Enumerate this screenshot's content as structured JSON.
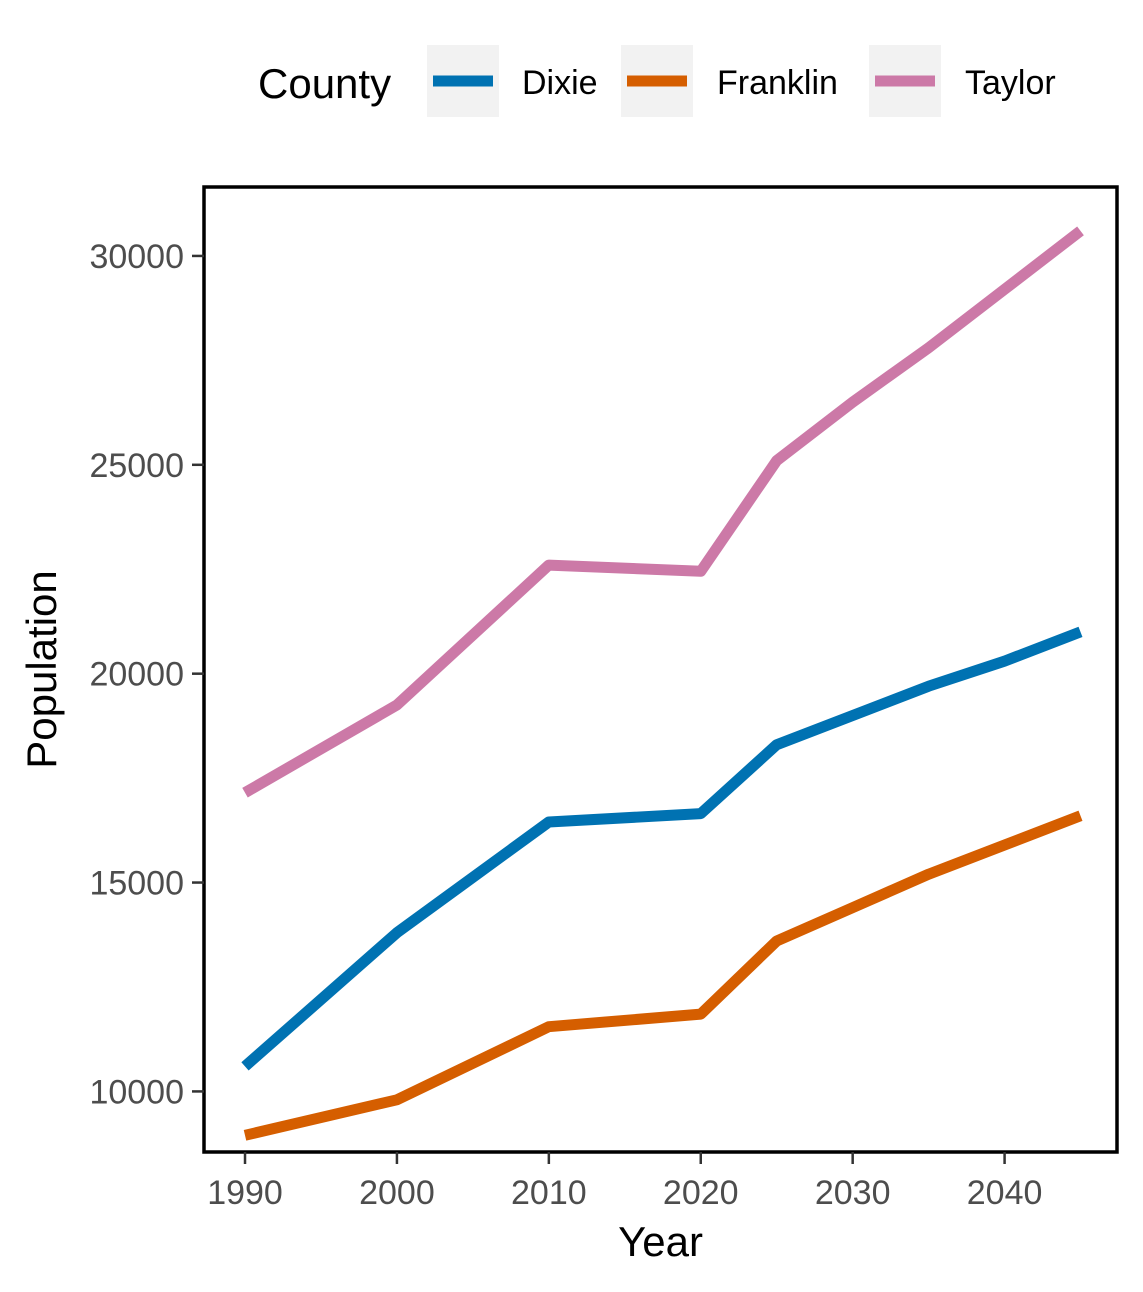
{
  "chart_data": {
    "type": "line",
    "xlabel": "Year",
    "ylabel": "Population",
    "xlim": [
      1987.3,
      2047.4
    ],
    "ylim": [
      8550,
      31650
    ],
    "xticks": [
      1990,
      2000,
      2010,
      2020,
      2030,
      2040
    ],
    "yticks": [
      10000,
      15000,
      20000,
      25000,
      30000
    ],
    "grid": false,
    "legend": {
      "title": "County",
      "position": "top"
    },
    "x": [
      1990,
      2000,
      2010,
      2020,
      2025,
      2030,
      2035,
      2040,
      2045
    ],
    "series": [
      {
        "name": "Dixie",
        "color": "#0072B2",
        "values": [
          10600,
          13800,
          16450,
          16650,
          18300,
          19000,
          19700,
          20300,
          21000
        ]
      },
      {
        "name": "Franklin",
        "color": "#D55E00",
        "values": [
          8950,
          9800,
          11550,
          11850,
          13600,
          14400,
          15200,
          15900,
          16600
        ]
      },
      {
        "name": "Taylor",
        "color": "#CC79A7",
        "values": [
          17150,
          19250,
          22600,
          22450,
          25100,
          26500,
          27800,
          29200,
          30600
        ]
      }
    ]
  }
}
